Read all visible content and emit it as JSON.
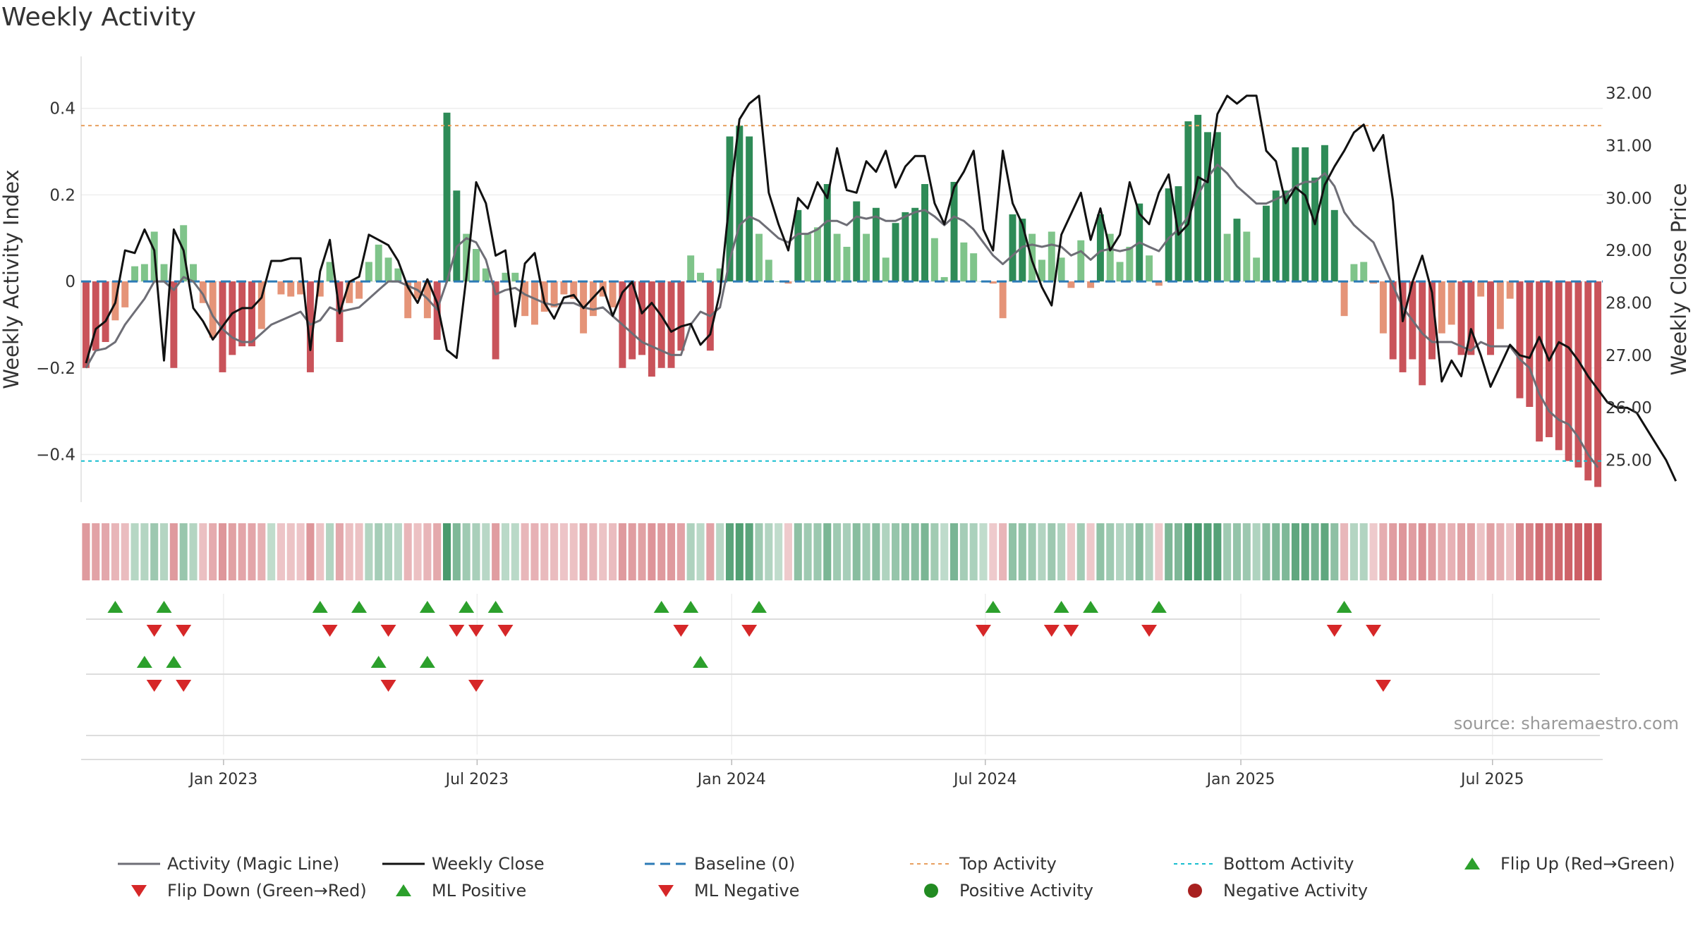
{
  "title": "Weekly Activity",
  "source": "source: sharemaestro.com",
  "colors": {
    "magic_line": "#6e6e76",
    "weekly_close": "#111111",
    "baseline": "#2c7bb6",
    "top_line": "#e8a060",
    "bottom_line": "#17becf",
    "green_dark": "#2e8b57",
    "green_light": "#7fc48a",
    "red_dark": "#c9535a",
    "red_light": "#e59478",
    "flip_up": "#2ca02c",
    "flip_down": "#d62728",
    "positive_dot": "#228b22",
    "negative_dot": "#a8201f",
    "grid": "#dddddd"
  },
  "chart_data": {
    "type": "bar+line",
    "title": "Weekly Activity",
    "ylabel_left": "Weekly Activity Index",
    "ylabel_right": "Weekly Close Price",
    "ylim_left": [
      -0.51,
      0.52
    ],
    "ylim_right": [
      24.2,
      32.7
    ],
    "yticks_left": [
      {
        "v": 0.4,
        "label": "0.4"
      },
      {
        "v": 0.2,
        "label": "0.2"
      },
      {
        "v": 0,
        "label": "0"
      },
      {
        "v": -0.2,
        "label": "−0.2"
      },
      {
        "v": -0.4,
        "label": "−0.4"
      }
    ],
    "yticks_right": [
      {
        "v": 32,
        "label": "32.00"
      },
      {
        "v": 31,
        "label": "31.00"
      },
      {
        "v": 30,
        "label": "30.00"
      },
      {
        "v": 29,
        "label": "29.00"
      },
      {
        "v": 28,
        "label": "28.00"
      },
      {
        "v": 27,
        "label": "27.00"
      },
      {
        "v": 26,
        "label": "26.00"
      },
      {
        "v": 25,
        "label": "25.00"
      }
    ],
    "xticks": [
      {
        "week": 14.6,
        "label": "Jan 2023"
      },
      {
        "week": 40.6,
        "label": "Jul 2023"
      },
      {
        "week": 66.7,
        "label": "Jan 2024"
      },
      {
        "week": 92.7,
        "label": "Jul 2024"
      },
      {
        "week": 118.9,
        "label": "Jan 2025"
      },
      {
        "week": 144.7,
        "label": "Jul 2025"
      }
    ],
    "top_activity": 0.36,
    "bottom_activity": -0.415,
    "activity_index": [
      -0.2,
      -0.16,
      -0.14,
      -0.09,
      -0.06,
      0.035,
      0.04,
      0.115,
      0.04,
      -0.2,
      0.13,
      0.04,
      -0.05,
      -0.13,
      -0.21,
      -0.17,
      -0.15,
      -0.15,
      -0.11,
      0,
      -0.03,
      -0.035,
      -0.03,
      -0.21,
      -0.035,
      0.045,
      -0.14,
      -0.05,
      -0.04,
      0.045,
      0.085,
      0.055,
      0.03,
      -0.085,
      -0.04,
      -0.085,
      -0.135,
      0.39,
      0.21,
      0.11,
      0.075,
      0.03,
      -0.18,
      0.02,
      0.02,
      -0.08,
      -0.1,
      -0.07,
      -0.06,
      -0.03,
      -0.04,
      -0.12,
      -0.08,
      -0.035,
      -0.06,
      -0.2,
      -0.18,
      -0.17,
      -0.22,
      -0.2,
      -0.2,
      -0.16,
      0.06,
      0.02,
      -0.16,
      0.03,
      0.335,
      0.36,
      0.335,
      0.11,
      0.05,
      0,
      -0.005,
      0.165,
      0.11,
      0.125,
      0.225,
      0.11,
      0.08,
      0.185,
      0.11,
      0.17,
      0.055,
      0.135,
      0.16,
      0.17,
      0.225,
      0.1,
      0.01,
      0.23,
      0.09,
      0.065,
      0,
      -0.005,
      -0.085,
      0.155,
      0.145,
      0.11,
      0.05,
      0.115,
      0.055,
      -0.015,
      0.095,
      -0.015,
      0.155,
      0.11,
      0.045,
      0.08,
      0.18,
      0.06,
      -0.01,
      0.215,
      0.22,
      0.37,
      0.385,
      0.345,
      0.345,
      0.11,
      0.145,
      0.115,
      0.055,
      0.175,
      0.21,
      0.21,
      0.31,
      0.31,
      0.24,
      0.315,
      0.165,
      -0.08,
      0.04,
      0.045,
      -0.005,
      -0.12,
      -0.18,
      -0.21,
      -0.18,
      -0.24,
      -0.18,
      -0.12,
      -0.1,
      -0.17,
      -0.17,
      -0.035,
      -0.17,
      -0.11,
      -0.04,
      -0.27,
      -0.29,
      -0.37,
      -0.36,
      -0.39,
      -0.415,
      -0.43,
      -0.46,
      -0.475
    ],
    "magic_line": [
      -0.2,
      -0.16,
      -0.155,
      -0.14,
      -0.1,
      -0.07,
      -0.04,
      0,
      0,
      -0.02,
      0.01,
      0,
      -0.03,
      -0.08,
      -0.11,
      -0.13,
      -0.14,
      -0.14,
      -0.12,
      -0.1,
      -0.09,
      -0.08,
      -0.07,
      -0.1,
      -0.09,
      -0.06,
      -0.07,
      -0.065,
      -0.06,
      -0.04,
      -0.02,
      0,
      0,
      -0.01,
      -0.02,
      -0.04,
      -0.065,
      0,
      0.08,
      0.1,
      0.09,
      0.05,
      -0.03,
      -0.02,
      -0.015,
      -0.03,
      -0.04,
      -0.05,
      -0.055,
      -0.05,
      -0.05,
      -0.06,
      -0.065,
      -0.06,
      -0.08,
      -0.1,
      -0.12,
      -0.14,
      -0.15,
      -0.16,
      -0.17,
      -0.17,
      -0.1,
      -0.07,
      -0.08,
      -0.06,
      0.05,
      0.13,
      0.15,
      0.14,
      0.12,
      0.1,
      0.09,
      0.11,
      0.11,
      0.12,
      0.14,
      0.14,
      0.13,
      0.15,
      0.145,
      0.15,
      0.14,
      0.14,
      0.15,
      0.16,
      0.165,
      0.15,
      0.13,
      0.15,
      0.14,
      0.12,
      0.09,
      0.06,
      0.04,
      0.06,
      0.08,
      0.085,
      0.08,
      0.085,
      0.08,
      0.06,
      0.07,
      0.05,
      0.07,
      0.075,
      0.07,
      0.075,
      0.09,
      0.08,
      0.07,
      0.1,
      0.12,
      0.15,
      0.2,
      0.24,
      0.27,
      0.25,
      0.22,
      0.2,
      0.18,
      0.18,
      0.19,
      0.2,
      0.22,
      0.23,
      0.23,
      0.25,
      0.22,
      0.16,
      0.13,
      0.11,
      0.09,
      0.04,
      -0.01,
      -0.06,
      -0.09,
      -0.12,
      -0.14,
      -0.14,
      -0.14,
      -0.15,
      -0.16,
      -0.14,
      -0.15,
      -0.15,
      -0.15,
      -0.18,
      -0.2,
      -0.26,
      -0.3,
      -0.32,
      -0.33,
      -0.36,
      -0.4,
      -0.43
    ],
    "weekly_close": [
      26.85,
      27.5,
      27.65,
      28.0,
      29.0,
      28.95,
      29.4,
      29.0,
      26.9,
      29.4,
      29.0,
      27.9,
      27.65,
      27.3,
      27.55,
      27.8,
      27.9,
      27.9,
      28.1,
      28.8,
      28.8,
      28.85,
      28.85,
      27.1,
      28.6,
      29.2,
      27.8,
      28.4,
      28.5,
      29.3,
      29.2,
      29.1,
      28.8,
      28.3,
      28.0,
      28.45,
      28.0,
      27.1,
      26.95,
      28.5,
      30.3,
      29.9,
      28.9,
      29.0,
      27.55,
      28.75,
      28.95,
      28.0,
      27.7,
      28.1,
      28.15,
      27.9,
      28.1,
      28.3,
      27.75,
      28.2,
      28.4,
      27.8,
      28.0,
      27.75,
      27.45,
      27.55,
      27.6,
      27.2,
      27.4,
      28.2,
      30.0,
      31.5,
      31.8,
      31.95,
      30.1,
      29.5,
      29.0,
      30.0,
      29.8,
      30.3,
      30.0,
      30.95,
      30.15,
      30.1,
      30.7,
      30.5,
      30.9,
      30.2,
      30.6,
      30.8,
      30.8,
      29.9,
      29.5,
      30.2,
      30.5,
      30.9,
      29.4,
      29.0,
      30.9,
      29.9,
      29.5,
      28.8,
      28.3,
      27.95,
      29.3,
      29.7,
      30.1,
      29.2,
      29.8,
      29.0,
      29.3,
      30.3,
      29.7,
      29.5,
      30.1,
      30.45,
      29.3,
      29.5,
      30.4,
      30.3,
      31.6,
      31.95,
      31.8,
      31.95,
      31.95,
      30.9,
      30.7,
      29.9,
      30.2,
      30.05,
      29.5,
      30.25,
      30.6,
      30.9,
      31.25,
      31.4,
      30.9,
      31.2,
      29.95,
      27.65,
      28.4,
      28.9,
      28.2,
      26.5,
      26.9,
      26.6,
      27.5,
      27.0,
      26.4,
      26.8,
      27.2,
      27.0,
      26.95,
      27.35,
      26.9,
      27.25,
      27.15,
      26.9,
      26.6,
      26.35,
      26.1,
      26.0,
      26.0,
      25.9,
      25.6,
      25.3,
      25.0,
      24.6
    ],
    "flip_up_weeks": [
      3,
      8,
      24,
      28,
      35,
      39,
      42,
      59,
      62,
      69,
      93,
      100,
      103,
      110,
      129
    ],
    "flip_down_weeks": [
      7,
      10,
      25,
      31,
      38,
      40,
      43,
      61,
      68,
      92,
      99,
      101,
      109,
      128,
      132
    ],
    "ml_positive_weeks": [
      6,
      9,
      30,
      35,
      63
    ],
    "ml_negative_weeks": [
      7,
      10,
      31,
      40,
      133
    ],
    "legend": [
      {
        "key": "magic_line",
        "label": "Activity (Magic Line)"
      },
      {
        "key": "weekly_close",
        "label": "Weekly Close"
      },
      {
        "key": "baseline",
        "label": "Baseline (0)"
      },
      {
        "key": "top_line",
        "label": "Top Activity"
      },
      {
        "key": "bottom_line",
        "label": "Bottom Activity"
      },
      {
        "key": "flip_up",
        "label": "Flip Up (Red→Green)"
      },
      {
        "key": "flip_down",
        "label": "Flip Down (Green→Red)"
      },
      {
        "key": "ml_positive",
        "label": "ML Positive"
      },
      {
        "key": "ml_negative",
        "label": "ML Negative"
      },
      {
        "key": "positive_dot",
        "label": "Positive Activity"
      },
      {
        "key": "negative_dot",
        "label": "Negative Activity"
      }
    ]
  }
}
